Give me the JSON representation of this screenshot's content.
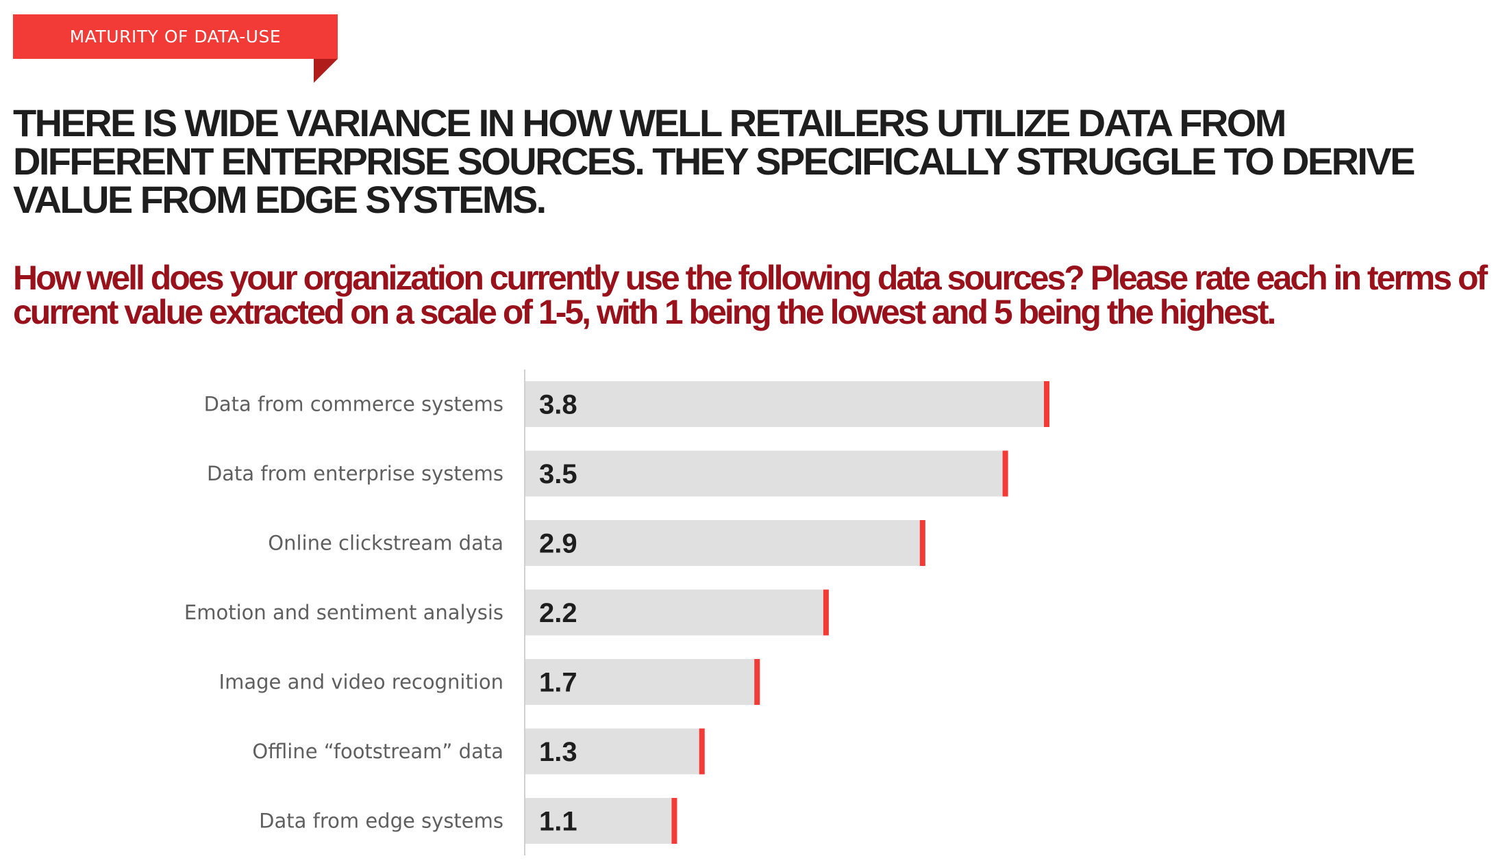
{
  "tag": {
    "label": "MATURITY OF DATA-USE"
  },
  "headline": "THERE IS WIDE VARIANCE IN HOW WELL RETAILERS UTILIZE DATA FROM DIFFERENT ENTERPRISE SOURCES. THEY SPECIFICALLY STRUGGLE TO DERIVE VALUE FROM EDGE SYSTEMS.",
  "question": "How well does your organization currently use the following data sources? Please rate each in terms of current value extracted on a scale of 1-5, with 1 being the lowest and 5 being the highest.",
  "colors": {
    "accent": "#f23a37",
    "tag_fold": "#b01c1a",
    "headline": "#1e1e1e",
    "question": "#98111b",
    "bar_track": "#e0e0e0",
    "bar_marker": "#f23a37",
    "axis": "#d0d0d0"
  },
  "chart_data": {
    "type": "bar",
    "orientation": "horizontal",
    "categories": [
      "Data from commerce systems",
      "Data from enterprise systems",
      "Online clickstream data",
      "Emotion and sentiment analysis",
      "Image and video recognition",
      "Offline “footstream” data",
      "Data from edge systems"
    ],
    "values": [
      3.8,
      3.5,
      2.9,
      2.2,
      1.7,
      1.3,
      1.1
    ],
    "value_labels": [
      "3.8",
      "3.5",
      "2.9",
      "2.2",
      "1.7",
      "1.3",
      "1.1"
    ],
    "xlim": [
      0,
      3.8
    ],
    "grid": false,
    "legend": "none"
  }
}
